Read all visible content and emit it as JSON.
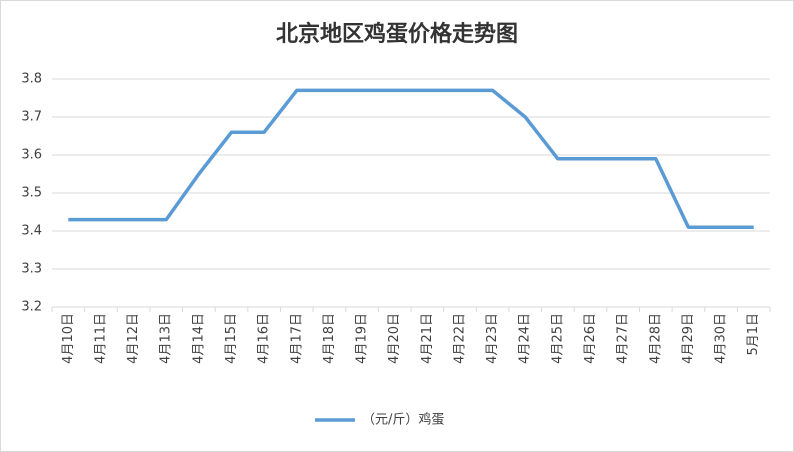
{
  "chart_data": {
    "type": "line",
    "title": "北京地区鸡蛋价格走势图",
    "categories": [
      "4月10日",
      "4月11日",
      "4月12日",
      "4月13日",
      "4月14日",
      "4月15日",
      "4月16日",
      "4月17日",
      "4月18日",
      "4月19日",
      "4月20日",
      "4月21日",
      "4月22日",
      "4月23日",
      "4月24日",
      "4月25日",
      "4月26日",
      "4月27日",
      "4月28日",
      "4月29日",
      "4月30日",
      "5月1日"
    ],
    "series": [
      {
        "name": "（元/斤）鸡蛋",
        "color": "#5b9bd5",
        "values": [
          3.43,
          3.43,
          3.43,
          3.43,
          3.55,
          3.66,
          3.66,
          3.77,
          3.77,
          3.77,
          3.77,
          3.77,
          3.77,
          3.77,
          3.7,
          3.59,
          3.59,
          3.59,
          3.59,
          3.41,
          3.41,
          3.41
        ]
      }
    ],
    "ylim": [
      3.2,
      3.8
    ],
    "yticks": [
      3.2,
      3.3,
      3.4,
      3.5,
      3.6,
      3.7,
      3.8
    ],
    "grid": true
  }
}
